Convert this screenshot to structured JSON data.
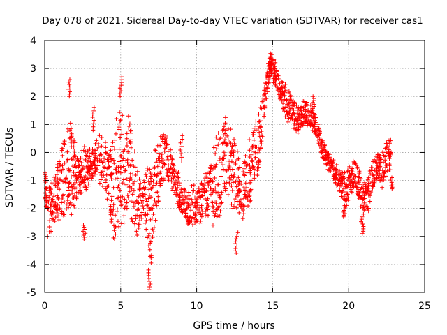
{
  "chart_data": {
    "type": "scatter",
    "title": "Day 078 of 2021, Sidereal Day-to-day VTEC variation (SDTVAR) for receiver cas1",
    "xlabel": "GPS time / hours",
    "ylabel": "SDTVAR / TECUs",
    "xlim": [
      0,
      25
    ],
    "ylim": [
      -5,
      4
    ],
    "xticks": [
      "0",
      "5",
      "10",
      "15",
      "20",
      "25"
    ],
    "yticks": [
      "-5",
      "-4",
      "-3",
      "-2",
      "-1",
      "0",
      "1",
      "2",
      "3",
      "4"
    ],
    "grid": true,
    "marker": "plus",
    "series": [
      {
        "name": "SDTVAR",
        "color": "#ff0000",
        "envelope": {
          "x": [
            0.0,
            0.2,
            0.5,
            0.8,
            1.0,
            1.3,
            1.6,
            1.8,
            2.0,
            2.3,
            2.5,
            2.8,
            3.0,
            3.3,
            3.6,
            4.0,
            4.3,
            4.5,
            4.8,
            5.0,
            5.3,
            5.6,
            5.9,
            6.2,
            6.5,
            6.8,
            7.0,
            7.3,
            7.6,
            7.9,
            8.2,
            8.5,
            8.8,
            9.1,
            9.4,
            9.7,
            10.0,
            10.3,
            10.6,
            10.9,
            11.2,
            11.5,
            11.8,
            12.1,
            12.4,
            12.7,
            13.0,
            13.3,
            13.6,
            13.9,
            14.2,
            14.5,
            14.7,
            14.9,
            15.1,
            15.3,
            15.6,
            15.9,
            16.2,
            16.5,
            16.8,
            17.1,
            17.4,
            17.7,
            18.0,
            18.3,
            18.6,
            18.9,
            19.2,
            19.5,
            19.8,
            20.1,
            20.4,
            20.7,
            21.0,
            21.3,
            21.6,
            21.9,
            22.2,
            22.5,
            22.8
          ],
          "low": [
            -1.5,
            -3.3,
            -3.0,
            -2.6,
            -2.6,
            -2.4,
            -2.2,
            -2.6,
            -2.0,
            -1.7,
            -1.5,
            -1.4,
            -1.1,
            -0.9,
            -1.3,
            -1.6,
            -2.4,
            -3.8,
            -3.4,
            -2.9,
            -2.6,
            -2.6,
            -3.0,
            -3.1,
            -2.5,
            -3.7,
            -4.4,
            -2.6,
            -1.6,
            -0.9,
            -1.2,
            -1.6,
            -2.0,
            -2.3,
            -2.6,
            -2.7,
            -2.7,
            -2.6,
            -2.4,
            -2.6,
            -2.8,
            -2.6,
            -2.1,
            -1.8,
            -2.3,
            -2.9,
            -2.6,
            -2.4,
            -1.8,
            -1.3,
            -0.4,
            1.6,
            2.2,
            2.6,
            2.4,
            2.0,
            1.6,
            1.0,
            0.9,
            0.5,
            0.7,
            1.0,
            0.9,
            0.7,
            0.3,
            -0.3,
            -0.6,
            -0.9,
            -1.2,
            -1.6,
            -2.0,
            -1.7,
            -1.4,
            -1.8,
            -2.4,
            -2.2,
            -1.4,
            -1.0,
            -1.4,
            -1.0,
            -0.6
          ],
          "high": [
            -0.5,
            -1.2,
            -0.8,
            -0.2,
            0.4,
            0.8,
            1.2,
            1.6,
            0.4,
            -0.2,
            0.3,
            0.1,
            0.3,
            0.5,
            1.0,
            0.6,
            0.3,
            0.9,
            1.6,
            1.9,
            0.9,
            1.5,
            0.2,
            -0.6,
            -0.9,
            -0.3,
            -0.2,
            0.6,
            0.8,
            0.9,
            0.3,
            -0.1,
            -0.6,
            -1.1,
            -1.4,
            -1.0,
            -1.2,
            -0.9,
            -0.5,
            0.1,
            0.5,
            1.0,
            1.6,
            1.4,
            0.9,
            0.1,
            -0.3,
            0.2,
            0.9,
            1.4,
            1.9,
            2.5,
            3.4,
            3.6,
            3.4,
            3.1,
            2.7,
            2.4,
            2.2,
            1.9,
            1.7,
            2.0,
            1.8,
            1.5,
            1.1,
            0.5,
            0.2,
            -0.1,
            -0.4,
            -0.7,
            -0.6,
            -0.3,
            -0.1,
            -0.6,
            -0.9,
            -0.6,
            -0.2,
            0.1,
            0.0,
            0.6,
            0.5
          ]
        },
        "spikes": [
          {
            "x": 1.6,
            "low": 2.0,
            "high": 2.6
          },
          {
            "x": 2.6,
            "low": -3.1,
            "high": -2.6
          },
          {
            "x": 3.2,
            "low": 0.8,
            "high": 1.6
          },
          {
            "x": 5.0,
            "low": 2.0,
            "high": 2.7
          },
          {
            "x": 6.9,
            "low": -4.9,
            "high": -4.2
          },
          {
            "x": 9.0,
            "low": -0.3,
            "high": 0.6
          },
          {
            "x": 12.6,
            "low": -3.6,
            "high": -3.0
          },
          {
            "x": 17.7,
            "low": 1.5,
            "high": 2.0
          },
          {
            "x": 19.7,
            "low": -2.3,
            "high": -1.9
          },
          {
            "x": 20.9,
            "low": -2.9,
            "high": -2.3
          },
          {
            "x": 22.8,
            "low": -1.3,
            "high": -0.9
          }
        ]
      }
    ]
  }
}
